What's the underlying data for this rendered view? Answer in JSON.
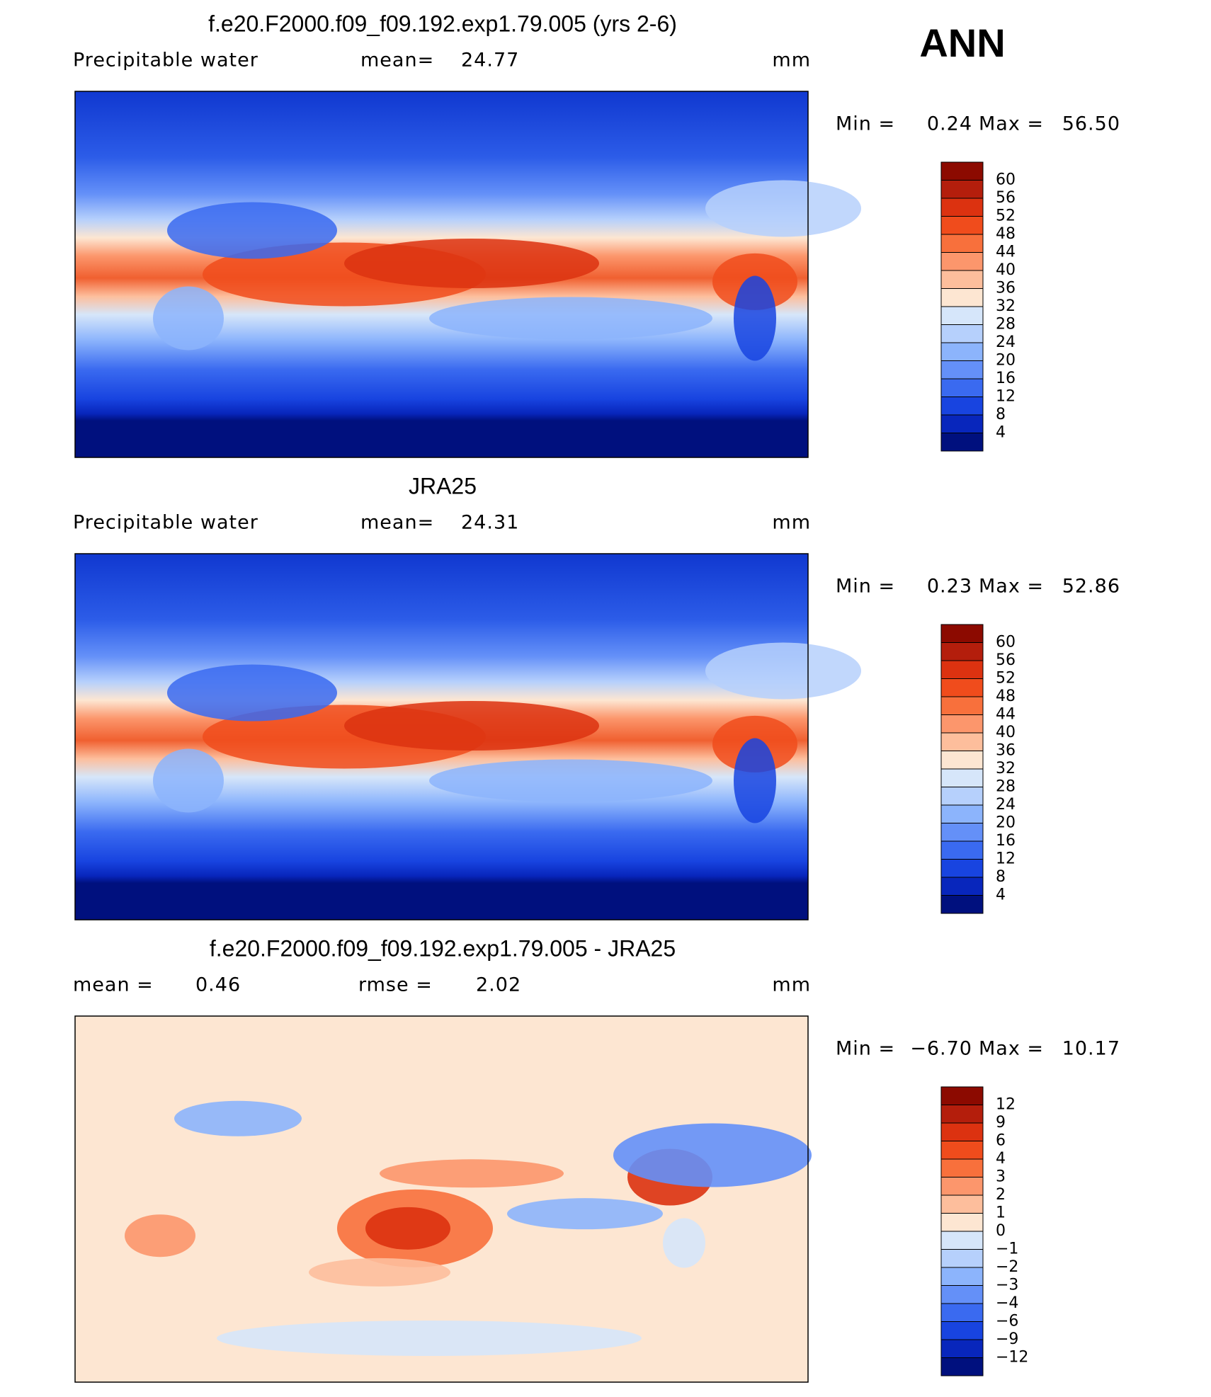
{
  "season": "ANN",
  "panels": [
    {
      "title": "f.e20.F2000.f09_f09.192.exp1.79.005 (yrs 2-6)",
      "variable": "Precipitable water",
      "stats": [
        {
          "label": "mean=",
          "value": "24.77"
        }
      ],
      "units": "mm",
      "min_label": "Min =",
      "min": "0.24",
      "max_label": "Max =",
      "max": "56.50",
      "colorbar": {
        "labels": [
          "60",
          "56",
          "52",
          "48",
          "44",
          "40",
          "36",
          "32",
          "28",
          "24",
          "20",
          "16",
          "12",
          "8",
          "4"
        ],
        "colors": [
          "#8c0a00",
          "#b41e0c",
          "#dc3210",
          "#f04c1c",
          "#f8703c",
          "#fc966c",
          "#fdbe9c",
          "#fde6d2",
          "#d6e6fa",
          "#b6d0fc",
          "#8cb4fc",
          "#6490f8",
          "#3a6af0",
          "#1844e0",
          "#0826bc",
          "#00107e"
        ]
      }
    },
    {
      "title": "JRA25",
      "variable": "Precipitable water",
      "stats": [
        {
          "label": "mean=",
          "value": "24.31"
        }
      ],
      "units": "mm",
      "min_label": "Min =",
      "min": "0.23",
      "max_label": "Max =",
      "max": "52.86",
      "colorbar": {
        "labels": [
          "60",
          "56",
          "52",
          "48",
          "44",
          "40",
          "36",
          "32",
          "28",
          "24",
          "20",
          "16",
          "12",
          "8",
          "4"
        ],
        "colors": [
          "#8c0a00",
          "#b41e0c",
          "#dc3210",
          "#f04c1c",
          "#f8703c",
          "#fc966c",
          "#fdbe9c",
          "#fde6d2",
          "#d6e6fa",
          "#b6d0fc",
          "#8cb4fc",
          "#6490f8",
          "#3a6af0",
          "#1844e0",
          "#0826bc",
          "#00107e"
        ]
      }
    },
    {
      "title": "f.e20.F2000.f09_f09.192.exp1.79.005 - JRA25",
      "stats": [
        {
          "label": "mean =",
          "value": "0.46"
        },
        {
          "label": "rmse =",
          "value": "2.02"
        }
      ],
      "units": "mm",
      "min_label": "Min =",
      "min": "−6.70",
      "max_label": "Max =",
      "max": "10.17",
      "colorbar": {
        "labels": [
          "12",
          "9",
          "6",
          "4",
          "3",
          "2",
          "1",
          "0",
          "−1",
          "−2",
          "−3",
          "−4",
          "−6",
          "−9",
          "−12"
        ],
        "colors": [
          "#8c0a00",
          "#b41e0c",
          "#dc3210",
          "#f04c1c",
          "#f8703c",
          "#fc966c",
          "#fdbe9c",
          "#fde6d2",
          "#d6e6fa",
          "#b6d0fc",
          "#8cb4fc",
          "#6490f8",
          "#3a6af0",
          "#1844e0",
          "#0826bc",
          "#00107e"
        ]
      }
    }
  ]
}
